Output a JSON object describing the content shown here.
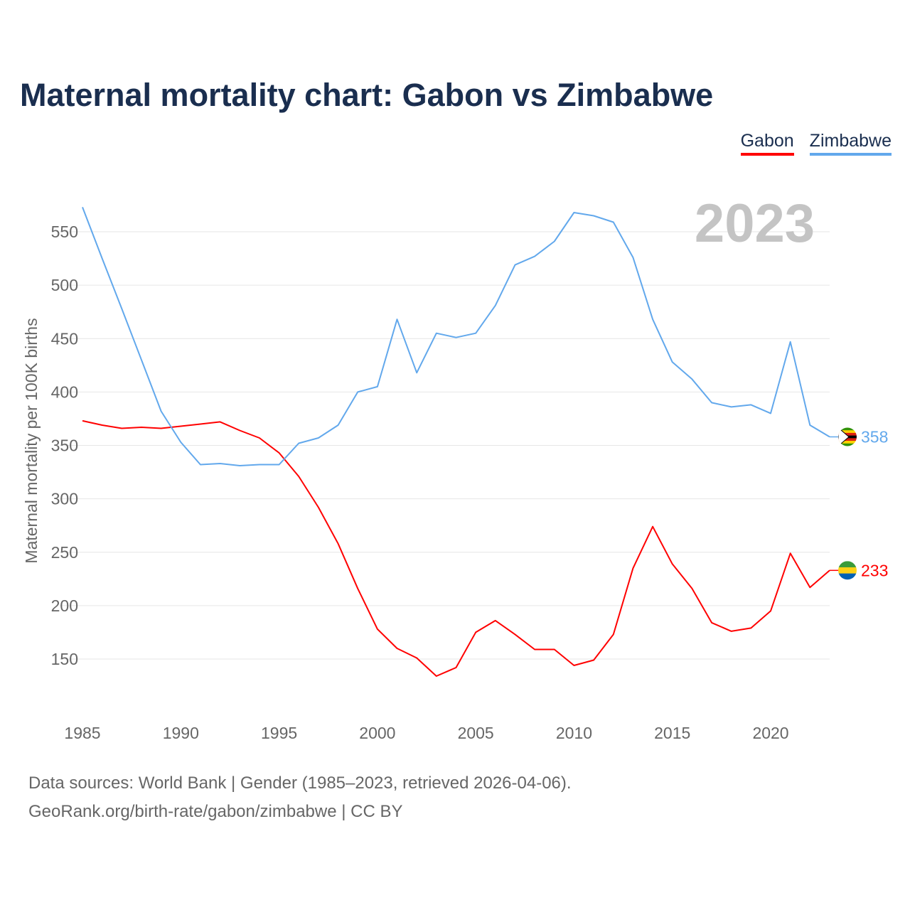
{
  "title": "Maternal mortality chart: Gabon vs Zimbabwe",
  "legend": [
    {
      "name": "Gabon",
      "color": "#ff0000"
    },
    {
      "name": "Zimbabwe",
      "color": "#62a8ec"
    }
  ],
  "year_label": "2023",
  "footer": {
    "line1": "Data sources: World Bank | Gender (1985–2023, retrieved 2026-04-06).",
    "line2": "GeoRank.org/birth-rate/gabon/zimbabwe | CC BY"
  },
  "chart_data": {
    "type": "line",
    "title": "Maternal mortality chart: Gabon vs Zimbabwe",
    "xlabel": "",
    "ylabel": "Maternal mortality per 100K births",
    "xlim": [
      1985,
      2023
    ],
    "ylim": [
      100,
      580
    ],
    "xticks": [
      1985,
      1990,
      1995,
      2000,
      2005,
      2010,
      2015,
      2020
    ],
    "yticks": [
      150,
      200,
      250,
      300,
      350,
      400,
      450,
      500,
      550
    ],
    "grid": true,
    "legend_position": "top-right",
    "x": [
      1985,
      1986,
      1987,
      1988,
      1989,
      1990,
      1991,
      1992,
      1993,
      1994,
      1995,
      1996,
      1997,
      1998,
      1999,
      2000,
      2001,
      2002,
      2003,
      2004,
      2005,
      2006,
      2007,
      2008,
      2009,
      2010,
      2011,
      2012,
      2013,
      2014,
      2015,
      2016,
      2017,
      2018,
      2019,
      2020,
      2021,
      2022,
      2023
    ],
    "series": [
      {
        "name": "Gabon",
        "color": "#ff0000",
        "end_label": "233",
        "values": [
          373,
          369,
          366,
          367,
          366,
          368,
          370,
          372,
          364,
          357,
          343,
          321,
          292,
          258,
          216,
          178,
          160,
          151,
          134,
          142,
          175,
          186,
          173,
          159,
          159,
          144,
          149,
          173,
          235,
          274,
          239,
          216,
          184,
          176,
          179,
          195,
          249,
          217,
          233
        ]
      },
      {
        "name": "Zimbabwe",
        "color": "#62a8ec",
        "end_label": "358",
        "values": [
          573,
          525,
          478,
          430,
          382,
          353,
          332,
          333,
          331,
          332,
          332,
          352,
          357,
          369,
          400,
          405,
          468,
          418,
          455,
          451,
          455,
          481,
          519,
          527,
          541,
          568,
          565,
          559,
          526,
          468,
          428,
          412,
          390,
          386,
          388,
          380,
          447,
          369,
          358
        ]
      }
    ]
  }
}
